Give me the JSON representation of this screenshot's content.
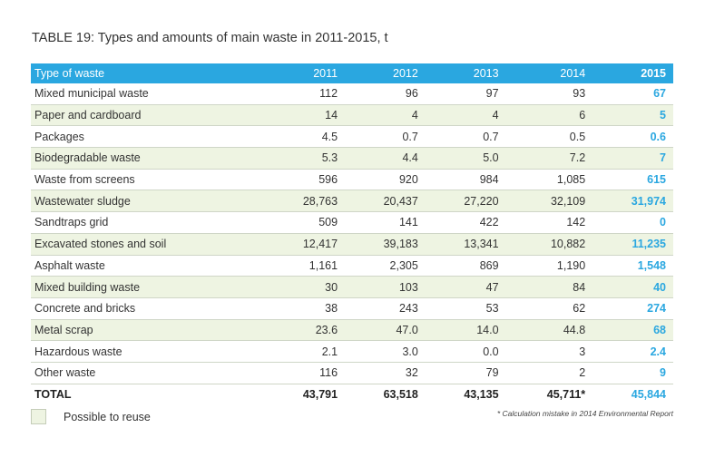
{
  "title": "TABLE 19: Types and amounts of main waste in 2011-2015, t",
  "header": [
    "Type of waste",
    "2011",
    "2012",
    "2013",
    "2014",
    "2015"
  ],
  "rows": [
    {
      "reuse": false,
      "cells": [
        "Mixed municipal waste",
        "112",
        "96",
        "97",
        "93",
        "67"
      ]
    },
    {
      "reuse": true,
      "cells": [
        "Paper and cardboard",
        "14",
        "4",
        "4",
        "6",
        "5"
      ]
    },
    {
      "reuse": false,
      "cells": [
        "Packages",
        "4.5",
        "0.7",
        "0.7",
        "0.5",
        "0.6"
      ]
    },
    {
      "reuse": true,
      "cells": [
        "Biodegradable waste",
        "5.3",
        "4.4",
        "5.0",
        "7.2",
        "7"
      ]
    },
    {
      "reuse": false,
      "cells": [
        "Waste from screens",
        "596",
        "920",
        "984",
        "1,085",
        "615"
      ]
    },
    {
      "reuse": true,
      "cells": [
        "Wastewater sludge",
        "28,763",
        "20,437",
        "27,220",
        "32,109",
        "31,974"
      ]
    },
    {
      "reuse": false,
      "cells": [
        "Sandtraps grid",
        "509",
        "141",
        "422",
        "142",
        "0"
      ]
    },
    {
      "reuse": true,
      "cells": [
        "Excavated stones and soil",
        "12,417",
        "39,183",
        "13,341",
        "10,882",
        "11,235"
      ]
    },
    {
      "reuse": false,
      "cells": [
        "Asphalt waste",
        "1,161",
        "2,305",
        "869",
        "1,190",
        "1,548"
      ]
    },
    {
      "reuse": true,
      "cells": [
        "Mixed building waste",
        "30",
        "103",
        "47",
        "84",
        "40"
      ]
    },
    {
      "reuse": false,
      "cells": [
        "Concrete and bricks",
        "38",
        "243",
        "53",
        "62",
        "274"
      ]
    },
    {
      "reuse": true,
      "cells": [
        "Metal scrap",
        "23.6",
        "47.0",
        "14.0",
        "44.8",
        "68"
      ]
    },
    {
      "reuse": false,
      "cells": [
        "Hazardous waste",
        "2.1",
        "3.0",
        "0.0",
        "3",
        "2.4"
      ]
    },
    {
      "reuse": false,
      "cells": [
        "Other waste",
        "116",
        "32",
        "79",
        "2",
        "9"
      ]
    }
  ],
  "total": [
    "TOTAL",
    "43,791",
    "63,518",
    "43,135",
    "45,711*",
    "45,844"
  ],
  "legend": {
    "label": "Possible to reuse"
  },
  "footnote": "* Calculation mistake in 2014 Environmental Report",
  "colors": {
    "accent": "#2aa7e0",
    "reuse_bg": "#eef4e2"
  }
}
